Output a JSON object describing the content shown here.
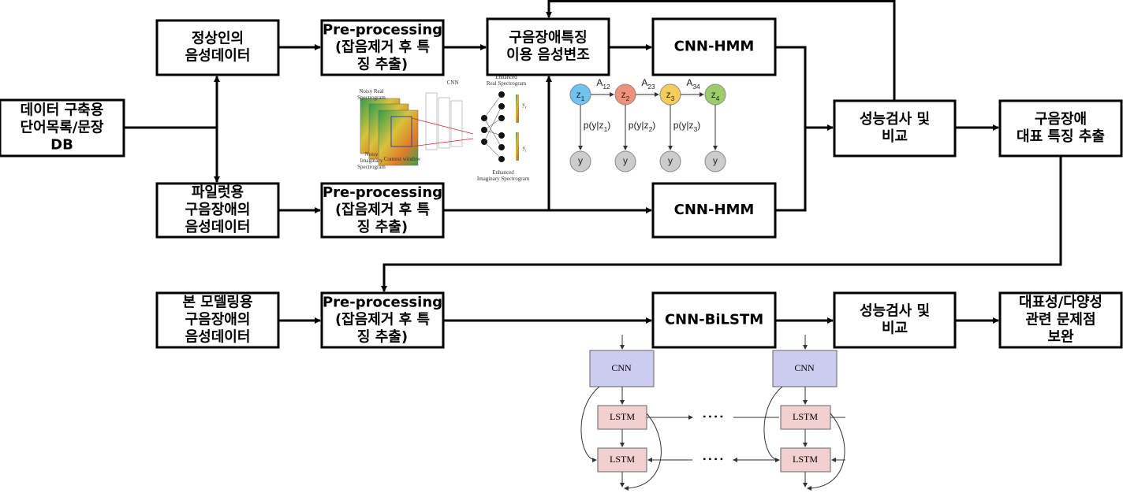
{
  "nodes": [
    {
      "lines": [
        "데이터 구축용",
        "단어목록/문장",
        "DB"
      ]
    },
    {
      "lines": [
        "정상인의",
        "음성데이터"
      ]
    },
    {
      "lines": [
        "Pre-processing",
        "(잡음제거 후 특",
        "징 추출)"
      ]
    },
    {
      "lines": [
        "구음장애특징",
        "이용 음성변조"
      ]
    },
    {
      "lines": [
        "CNN-HMM"
      ]
    },
    {
      "lines": [
        "파일럿용",
        "구음장애의",
        "음성데이터"
      ]
    },
    {
      "lines": [
        "Pre-processing",
        "(잡음제거 후 특",
        "징 추출)"
      ]
    },
    {
      "lines": [
        "CNN-HMM"
      ]
    },
    {
      "lines": [
        "성능검사 및",
        "비교"
      ]
    },
    {
      "lines": [
        "구음장애",
        "대표 특징 추출"
      ]
    },
    {
      "lines": [
        "본 모델링용",
        "구음장애의",
        "음성데이터"
      ]
    },
    {
      "lines": [
        "Pre-processing",
        "(잡음제거 후 특",
        "징 추출)"
      ]
    },
    {
      "lines": [
        "CNN-BiLSTM"
      ]
    },
    {
      "lines": [
        "성능검사 및",
        "비교"
      ]
    },
    {
      "lines": [
        "대표성/다양성",
        "관련 문제점",
        "보완"
      ]
    }
  ],
  "spectrogram_figure": {
    "cnn": "CNN",
    "noisy_real": [
      "Noisy Real",
      "Spectrogram"
    ],
    "noisy_imag": [
      "Noisy",
      "Imaginary",
      "Spectrogram"
    ],
    "context": "Context window",
    "enhanced_real": [
      "Enhanced",
      "Real Spectrogram"
    ],
    "enhanced_imag": [
      "Enhanced",
      "Imaginary Spectrogram"
    ],
    "yr": {
      "base": "y",
      "sub": "r"
    },
    "yi": {
      "base": "y",
      "sub": "i"
    }
  },
  "hmm_figure": {
    "states": [
      {
        "base": "z",
        "sub": "1"
      },
      {
        "base": "z",
        "sub": "2"
      },
      {
        "base": "z",
        "sub": "3"
      },
      {
        "base": "z",
        "sub": "4"
      }
    ],
    "transitions": [
      {
        "base": "A",
        "sub": "12"
      },
      {
        "base": "A",
        "sub": "23"
      },
      {
        "base": "A",
        "sub": "34"
      }
    ],
    "emissions": [
      {
        "base": "p(y|z",
        "sub": "1",
        "tail": ")"
      },
      {
        "base": "p(y|z",
        "sub": "2",
        "tail": ")"
      },
      {
        "base": "p(y|z",
        "sub": "3",
        "tail": ")"
      }
    ],
    "outputs": [
      "y",
      "y",
      "y",
      "y"
    ]
  },
  "lstm_figure": {
    "cnn": [
      "CNN",
      "CNN"
    ],
    "lstm": [
      "LSTM",
      "LSTM",
      "LSTM",
      "LSTM"
    ],
    "dots": [
      "• • • •",
      "• • • •"
    ]
  }
}
